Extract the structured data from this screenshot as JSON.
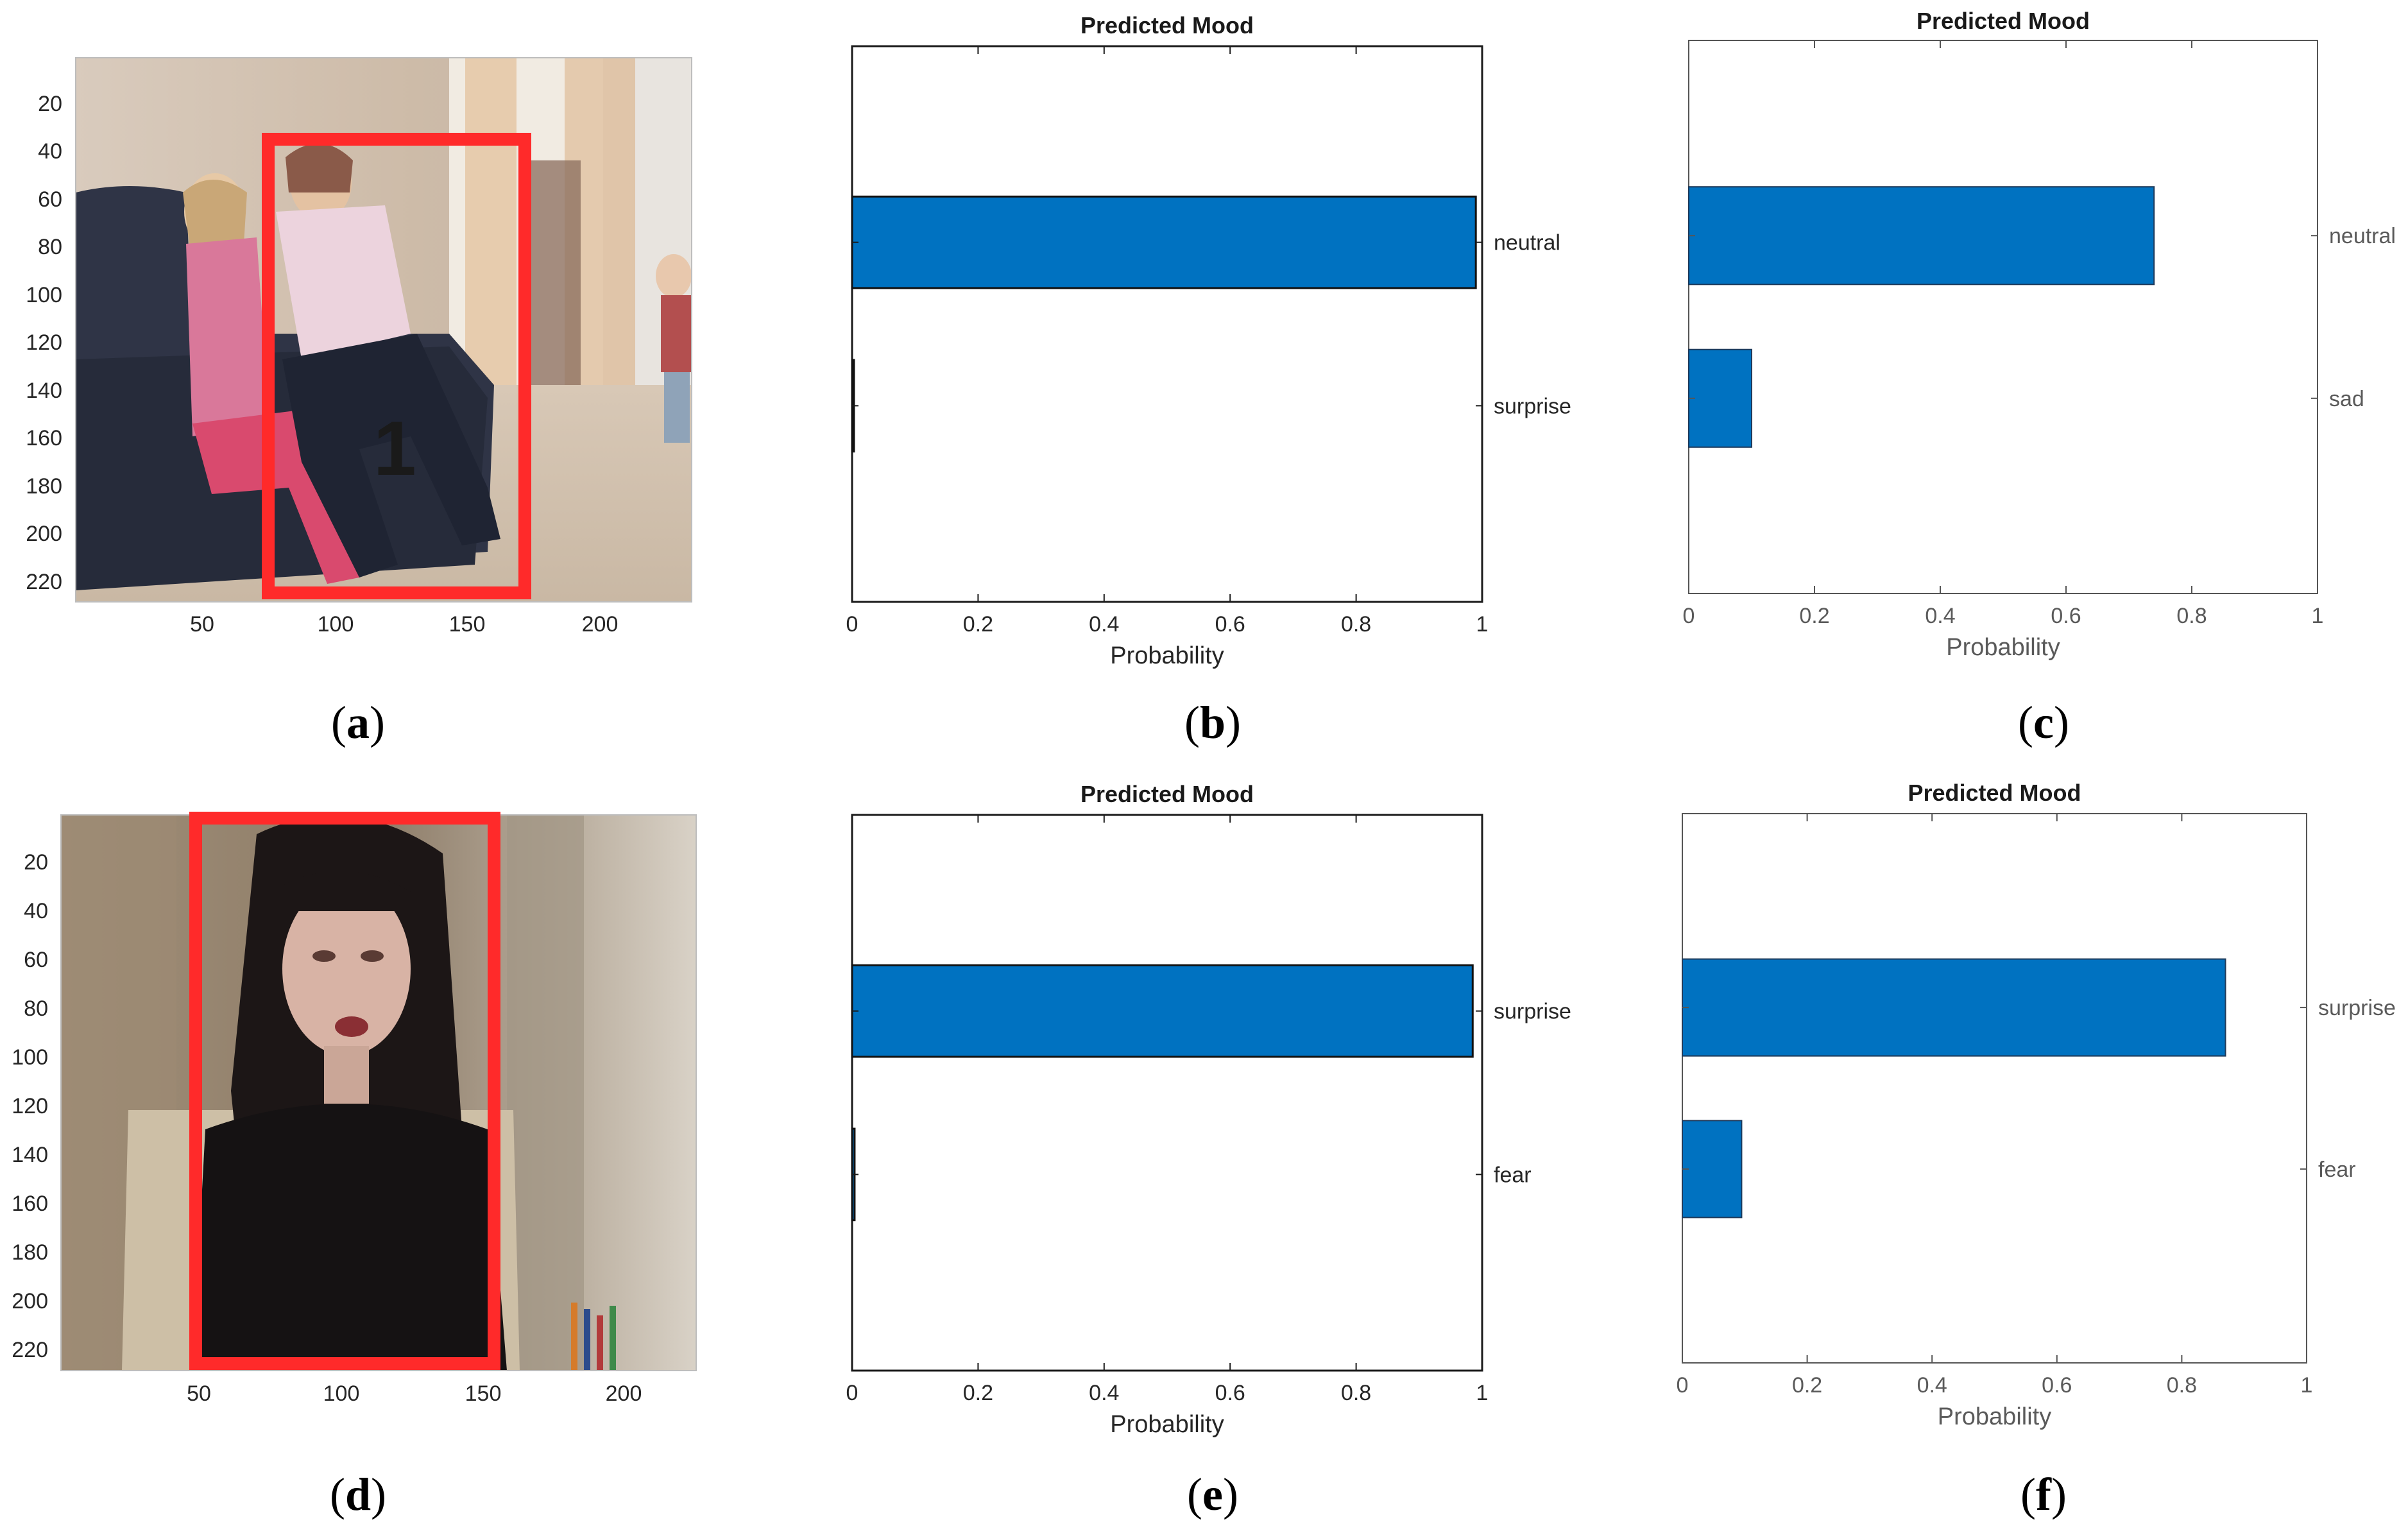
{
  "figure": {
    "panel_labels": [
      {
        "open": "(",
        "letter": "a",
        "close": ")"
      },
      {
        "open": "(",
        "letter": "b",
        "close": ")"
      },
      {
        "open": "(",
        "letter": "c",
        "close": ")"
      },
      {
        "open": "(",
        "letter": "d",
        "close": ")"
      },
      {
        "open": "(",
        "letter": "e",
        "close": ")"
      },
      {
        "open": "(",
        "letter": "f",
        "close": ")"
      }
    ],
    "images": [
      {
        "panel": "a",
        "y_ticks": [
          "20",
          "40",
          "60",
          "80",
          "100",
          "120",
          "140",
          "160",
          "180",
          "200",
          "220"
        ],
        "x_ticks": [
          "50",
          "100",
          "150",
          "200"
        ],
        "box_label": "1",
        "box_color": "#ff2a2a"
      },
      {
        "panel": "d",
        "y_ticks": [
          "20",
          "40",
          "60",
          "80",
          "100",
          "120",
          "140",
          "160",
          "180",
          "200",
          "220"
        ],
        "x_ticks": [
          "50",
          "100",
          "150",
          "200"
        ],
        "box_color": "#ff2a2a"
      }
    ]
  },
  "chart_data": [
    {
      "panel": "b",
      "type": "bar",
      "orientation": "horizontal",
      "title": "Predicted Mood",
      "xlabel": "Probability",
      "xlim": [
        0,
        1
      ],
      "x_ticks": [
        "0",
        "0.2",
        "0.4",
        "0.6",
        "0.8",
        "1"
      ],
      "categories": [
        "neutral",
        "surprise"
      ],
      "values": [
        0.99,
        0.003
      ],
      "category_axis": "right",
      "bar_color": "#0072c1"
    },
    {
      "panel": "c",
      "type": "bar",
      "orientation": "horizontal",
      "title": "Predicted Mood",
      "xlabel": "Probability",
      "xlim": [
        0,
        1
      ],
      "x_ticks": [
        "0",
        "0.2",
        "0.4",
        "0.6",
        "0.8",
        "1"
      ],
      "categories": [
        "neutral",
        "sad"
      ],
      "values": [
        0.74,
        0.1
      ],
      "category_axis": "right",
      "bar_color": "#0072c1"
    },
    {
      "panel": "e",
      "type": "bar",
      "orientation": "horizontal",
      "title": "Predicted Mood",
      "xlabel": "Probability",
      "xlim": [
        0,
        1
      ],
      "x_ticks": [
        "0",
        "0.2",
        "0.4",
        "0.6",
        "0.8",
        "1"
      ],
      "categories": [
        "surprise",
        "fear"
      ],
      "values": [
        0.985,
        0.004
      ],
      "category_axis": "right",
      "bar_color": "#0072c1"
    },
    {
      "panel": "f",
      "type": "bar",
      "orientation": "horizontal",
      "title": "Predicted Mood",
      "xlabel": "Probability",
      "xlim": [
        0,
        1
      ],
      "x_ticks": [
        "0",
        "0.2",
        "0.4",
        "0.6",
        "0.8",
        "1"
      ],
      "categories": [
        "surprise",
        "fear"
      ],
      "values": [
        0.87,
        0.095
      ],
      "category_axis": "right",
      "bar_color": "#0072c1"
    }
  ]
}
